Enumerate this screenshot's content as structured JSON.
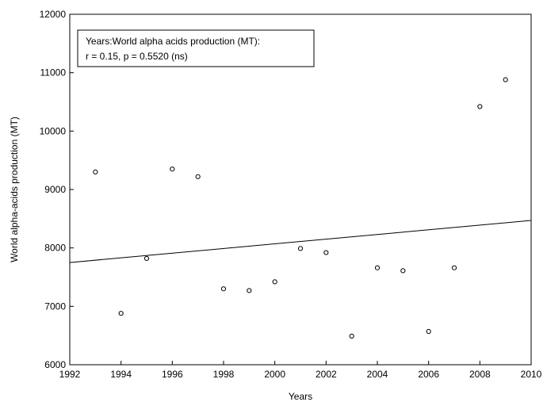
{
  "chart_data": {
    "type": "scatter",
    "title": "",
    "xlabel": "Years",
    "ylabel": "World alpha-acids production (MT)",
    "xlim": [
      1992,
      2010
    ],
    "ylim": [
      6000,
      12000
    ],
    "xticks": [
      1992,
      1994,
      1996,
      1998,
      2000,
      2002,
      2004,
      2006,
      2008,
      2010
    ],
    "yticks": [
      6000,
      7000,
      8000,
      9000,
      10000,
      11000,
      12000
    ],
    "grid": false,
    "legend_placement": "top-left",
    "annotation_lines": [
      "Years:World alpha acids production (MT):",
      "r = 0.15, p = 0.5520 (ns)"
    ],
    "series": [
      {
        "x": [
          1993,
          1994,
          1995,
          1996,
          1997,
          1998,
          1999,
          2000,
          2001,
          2002,
          2003,
          2004,
          2005,
          2006,
          2007,
          2008,
          2009
        ],
        "y": [
          9300,
          6880,
          7820,
          9350,
          9220,
          7300,
          7270,
          7420,
          7990,
          7920,
          6490,
          7660,
          7610,
          6570,
          7660,
          10420,
          10880
        ]
      }
    ],
    "regression_line": {
      "x": [
        1992,
        2010
      ],
      "y": [
        7750,
        8470
      ]
    }
  }
}
